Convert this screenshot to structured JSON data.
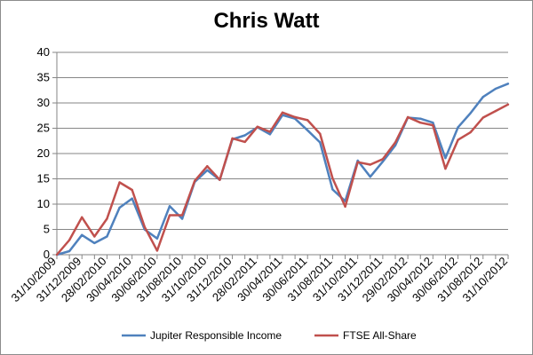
{
  "chart_data": {
    "type": "line",
    "title": "Chris Watt",
    "xlabel": "",
    "ylabel": "",
    "ylim": [
      0,
      40
    ],
    "yticks": [
      0,
      5,
      10,
      15,
      20,
      25,
      30,
      35,
      40
    ],
    "grid": true,
    "legend_position": "bottom",
    "x": [
      "31/10/2009",
      "30/11/2009",
      "31/12/2009",
      "31/01/2010",
      "28/02/2010",
      "31/03/2010",
      "30/04/2010",
      "31/05/2010",
      "30/06/2010",
      "31/07/2010",
      "31/08/2010",
      "30/09/2010",
      "31/10/2010",
      "30/11/2010",
      "31/12/2010",
      "31/01/2011",
      "28/02/2011",
      "31/03/2011",
      "30/04/2011",
      "31/05/2011",
      "30/06/2011",
      "31/07/2011",
      "31/08/2011",
      "30/09/2011",
      "31/10/2011",
      "30/11/2011",
      "31/12/2011",
      "31/01/2012",
      "29/02/2012",
      "31/03/2012",
      "30/04/2012",
      "31/05/2012",
      "30/06/2012",
      "31/07/2012",
      "31/08/2012",
      "30/09/2012",
      "31/10/2012"
    ],
    "tick_labels": [
      "31/10/2009",
      "31/12/2009",
      "28/02/2010",
      "30/04/2010",
      "30/06/2010",
      "31/08/2010",
      "31/10/2010",
      "31/12/2010",
      "28/02/2011",
      "30/04/2011",
      "30/06/2011",
      "31/08/2011",
      "31/10/2011",
      "31/12/2011",
      "29/02/2012",
      "30/04/2012",
      "30/06/2012",
      "31/08/2012",
      "31/10/2012"
    ],
    "series": [
      {
        "name": "Jupiter Responsible Income",
        "color": "#4F81BD",
        "values": [
          0,
          0.7,
          3.9,
          2.3,
          3.6,
          9.3,
          11.1,
          5.0,
          3.2,
          9.6,
          7.1,
          14.4,
          16.7,
          14.8,
          22.8,
          23.6,
          25.2,
          23.8,
          27.6,
          26.9,
          24.6,
          22.2,
          12.9,
          10.6,
          18.6,
          15.4,
          18.4,
          21.6,
          27.1,
          26.9,
          26.1,
          19.1,
          25.2,
          28.0,
          31.2,
          32.8,
          33.8
        ]
      },
      {
        "name": "FTSE All-Share",
        "color": "#C0504D",
        "values": [
          0,
          2.9,
          7.4,
          3.6,
          7.1,
          14.3,
          12.8,
          5.5,
          0.8,
          7.8,
          7.8,
          14.6,
          17.5,
          14.8,
          23.0,
          22.3,
          25.3,
          24.3,
          28.1,
          27.2,
          26.6,
          23.9,
          15.1,
          9.5,
          18.3,
          17.8,
          18.9,
          22.2,
          27.2,
          26.1,
          25.6,
          17.0,
          22.7,
          24.2,
          27.1,
          28.4,
          29.7
        ]
      }
    ]
  }
}
